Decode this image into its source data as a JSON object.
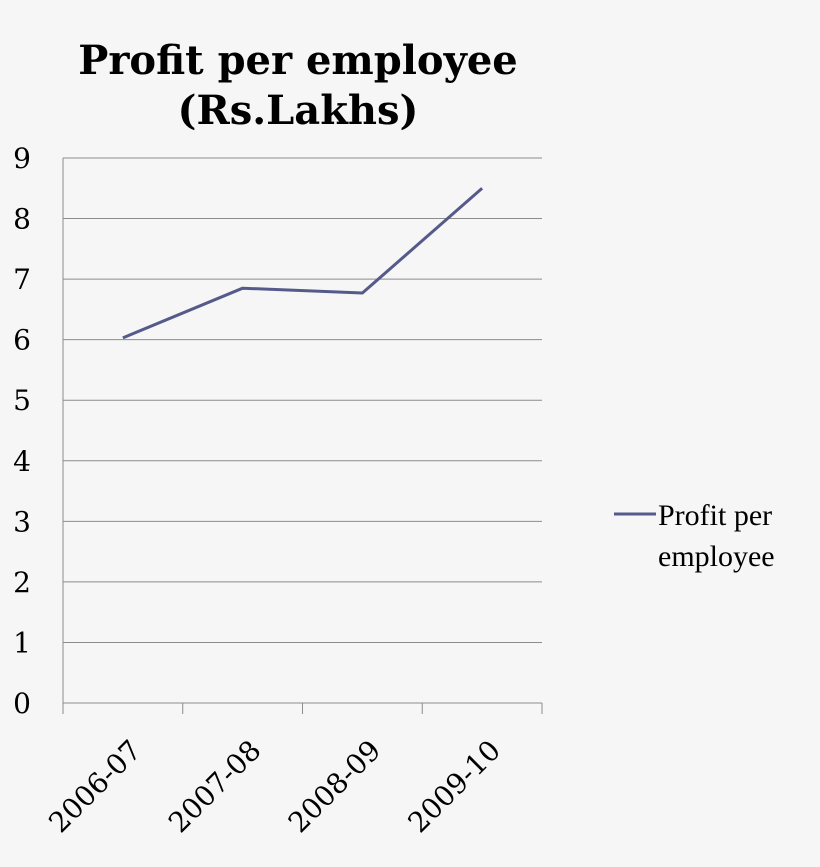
{
  "chart_data": {
    "type": "line",
    "title_lines": [
      "Profit per employee",
      "(Rs.Lakhs)"
    ],
    "categories": [
      "2006-07",
      "2007-08",
      "2008-09",
      "2009-10"
    ],
    "series": [
      {
        "name": "Profit per employee",
        "name_lines": [
          "Profit per",
          "employee"
        ],
        "values": [
          6.03,
          6.85,
          6.77,
          8.5
        ],
        "color": "#555a8a"
      }
    ],
    "ylim": [
      0,
      9
    ],
    "yticks": [
      "0",
      "1",
      "2",
      "3",
      "4",
      "5",
      "6",
      "7",
      "8",
      "9"
    ],
    "xlabel": "",
    "ylabel": "",
    "grid": true,
    "legend": "right",
    "colors": {
      "background": "#f6f6f6",
      "grid": "#8c8c8c",
      "axis": "#8c8c8c"
    }
  }
}
